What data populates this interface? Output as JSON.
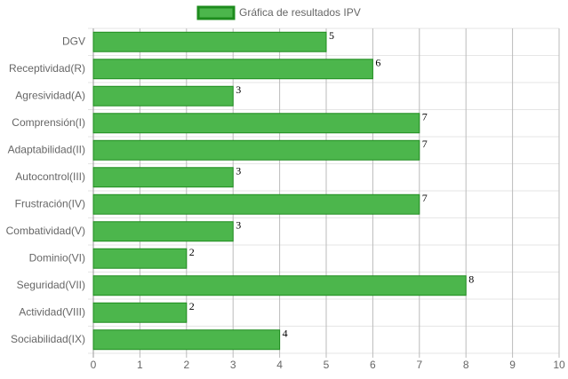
{
  "chart_data": {
    "type": "bar",
    "orientation": "horizontal",
    "categories": [
      "DGV",
      "Receptividad(R)",
      "Agresividad(A)",
      "Comprensión(I)",
      "Adaptabilidad(II)",
      "Autocontrol(III)",
      "Frustración(IV)",
      "Combatividad(V)",
      "Dominio(VI)",
      "Seguridad(VII)",
      "Actividad(VIII)",
      "Sociabilidad(IX)"
    ],
    "series": [
      {
        "name": "Gráfica de resultados IPV",
        "color": "#4cb64c",
        "border_color": "#1e8c1e",
        "values": [
          5,
          6,
          3,
          7,
          7,
          3,
          7,
          3,
          2,
          8,
          2,
          4
        ]
      }
    ],
    "xlim": [
      0,
      10
    ],
    "xticks": [
      0,
      1,
      2,
      3,
      4,
      5,
      6,
      7,
      8,
      9,
      10
    ],
    "grid": true,
    "legend": "top"
  }
}
